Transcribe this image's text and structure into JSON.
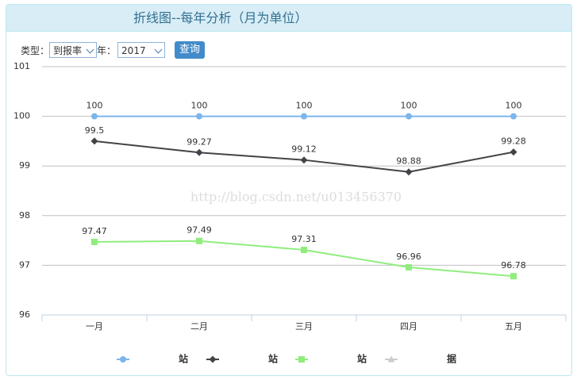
{
  "header": {
    "title": "折线图--每年分析（月为单位）"
  },
  "controls": {
    "type_label": "类型：",
    "type_value": "到报率",
    "year_label": "年：",
    "year_value": "2017",
    "button": "查询"
  },
  "watermark": "http://blog.csdn.net/u013456370",
  "chart_data": {
    "type": "line",
    "categories": [
      "一月",
      "二月",
      "三月",
      "四月",
      "五月"
    ],
    "ylim": [
      96,
      101
    ],
    "yticks": [
      96,
      97,
      98,
      99,
      100,
      101
    ],
    "grid": true,
    "legend": "bottom",
    "series": [
      {
        "name": "站",
        "color": "#7cb5ec",
        "marker": "circle",
        "values": [
          100,
          100,
          100,
          100,
          100
        ]
      },
      {
        "name": "站",
        "color": "#434348",
        "marker": "diamond",
        "values": [
          99.5,
          99.27,
          99.12,
          98.88,
          99.28
        ]
      },
      {
        "name": "站",
        "color": "#90ed7d",
        "marker": "square",
        "values": [
          97.47,
          97.49,
          97.31,
          96.96,
          96.78
        ]
      },
      {
        "name": "据",
        "color": "#cccccc",
        "marker": "triangle",
        "visible": false,
        "values": [
          null,
          null,
          null,
          null,
          null
        ]
      }
    ]
  }
}
